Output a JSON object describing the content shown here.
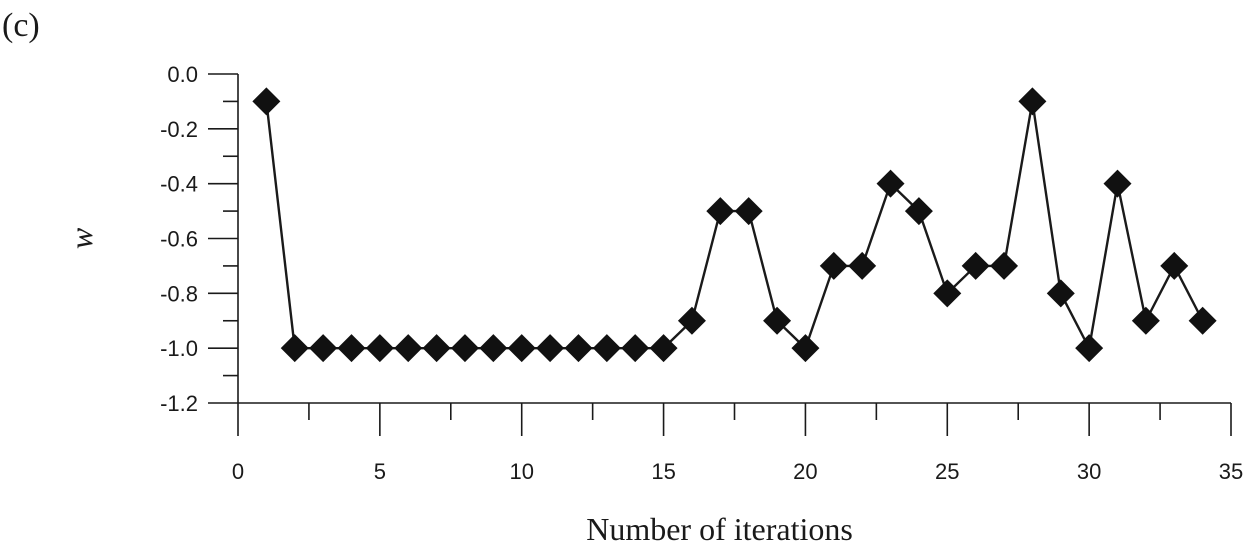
{
  "chart_data": {
    "type": "line",
    "panel_label": "(c)",
    "title": "",
    "xlabel": "Number of iterations",
    "ylabel": "w",
    "xlim": [
      0,
      35
    ],
    "ylim": [
      -1.2,
      0.0
    ],
    "x_major_ticks": [
      0,
      5,
      10,
      15,
      20,
      25,
      30,
      35
    ],
    "x_tick_labels": [
      "0",
      "5",
      "10",
      "15",
      "20",
      "25",
      "30",
      "35"
    ],
    "x_minor_step": 2.5,
    "y_major_ticks": [
      0.0,
      -0.2,
      -0.4,
      -0.6,
      -0.8,
      -1.0,
      -1.2
    ],
    "y_tick_labels": [
      "0.0",
      "-0.2",
      "-0.4",
      "-0.6",
      "-0.8",
      "-1.0",
      "-1.2"
    ],
    "y_minor_step": 0.1,
    "grid": false,
    "marker": "diamond",
    "colors": {
      "series": "#111111",
      "axis": "#1a1a1a"
    },
    "series": [
      {
        "x": [
          1,
          2,
          3,
          4,
          5,
          6,
          7,
          8,
          9,
          10,
          11,
          12,
          13,
          14,
          15,
          16,
          17,
          18,
          19,
          20,
          21,
          22,
          23,
          24,
          25,
          26,
          27,
          28,
          29,
          30,
          31,
          32,
          33,
          34
        ],
        "values": [
          -0.1,
          -1.0,
          -1.0,
          -1.0,
          -1.0,
          -1.0,
          -1.0,
          -1.0,
          -1.0,
          -1.0,
          -1.0,
          -1.0,
          -1.0,
          -1.0,
          -1.0,
          -0.9,
          -0.5,
          -0.5,
          -0.9,
          -1.0,
          -0.7,
          -0.7,
          -0.4,
          -0.5,
          -0.8,
          -0.7,
          -0.7,
          -0.1,
          -0.8,
          -1.0,
          -0.4,
          -0.9,
          -0.7,
          -0.9
        ]
      }
    ]
  }
}
